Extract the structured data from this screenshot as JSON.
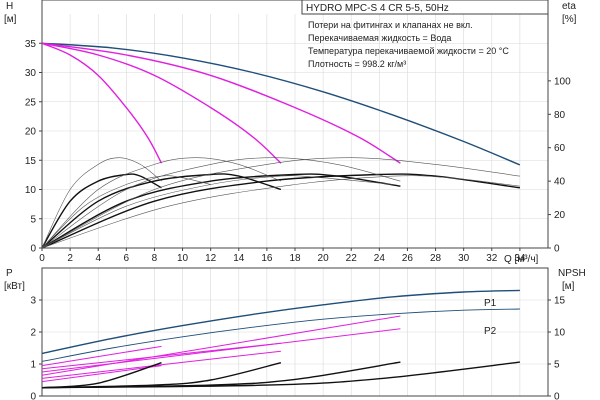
{
  "chart_data": [
    {
      "type": "line",
      "title": "HYDRO MPC-S 4 CR 5-5, 50Hz",
      "annotations": [
        "Потери на фитингах и клапанах не вкл.",
        "Перекачиваемая жидкость = Вода",
        "Температура перекачиваемой жидкости = 20 °C",
        "Плотность = 998.2 кг/м³"
      ],
      "ylabel_left": "H",
      "ylabel_left_unit": "[м]",
      "ylabel_right": "eta",
      "ylabel_right_unit": "[%]",
      "xlabel": "Q [м³/ч]",
      "xlim": [
        0,
        36
      ],
      "ylim_left": [
        0,
        40
      ],
      "ylim_right": [
        0,
        140
      ],
      "x_ticks": [
        0,
        2,
        4,
        6,
        8,
        10,
        12,
        14,
        16,
        18,
        20,
        22,
        24,
        26,
        28,
        30,
        32,
        34
      ],
      "y_ticks_left": [
        0,
        5,
        10,
        15,
        20,
        25,
        30,
        35
      ],
      "y_ticks_right": [
        0,
        20,
        40,
        60,
        80,
        100
      ],
      "colors": {
        "max": "#1f4e79",
        "reduced": "#e020e0",
        "eta": "#111111",
        "eta_thin": "#555555"
      },
      "series": [
        {
          "kind": "head_max",
          "x": [
            0,
            5,
            10,
            15,
            20,
            25,
            30,
            34
          ],
          "y": [
            35,
            34.2,
            32.5,
            30,
            26.7,
            22.7,
            18.2,
            14.2
          ]
        },
        {
          "kind": "head_reduced",
          "x": [
            0,
            2,
            4,
            6,
            7.5,
            8.5
          ],
          "y": [
            35,
            33,
            29.5,
            24,
            19,
            14.5
          ]
        },
        {
          "kind": "head_reduced",
          "x": [
            0,
            4,
            8,
            12,
            15,
            17
          ],
          "y": [
            35,
            33,
            29.5,
            24,
            19,
            14.5
          ]
        },
        {
          "kind": "head_reduced",
          "x": [
            0,
            6,
            12,
            18,
            22.5,
            25.5
          ],
          "y": [
            35,
            33,
            29.5,
            24,
            19,
            14.5
          ]
        },
        {
          "kind": "eta",
          "x": [
            0,
            2,
            4,
            6,
            7,
            8.5
          ],
          "y": [
            0,
            28,
            40,
            44,
            43,
            36
          ]
        },
        {
          "kind": "eta",
          "x": [
            0,
            4,
            8,
            12,
            14,
            17
          ],
          "y": [
            0,
            28,
            40,
            44,
            43,
            35
          ]
        },
        {
          "kind": "eta",
          "x": [
            0,
            6,
            12,
            18,
            21,
            25.5
          ],
          "y": [
            0,
            28,
            40,
            44,
            43,
            37
          ]
        },
        {
          "kind": "eta",
          "x": [
            0,
            8,
            16,
            24,
            28,
            34
          ],
          "y": [
            0,
            28,
            40,
            44,
            43,
            36
          ]
        },
        {
          "kind": "eta_thin",
          "x": [
            0,
            2,
            4,
            5.5,
            7,
            8.5
          ],
          "y": [
            0,
            35,
            50,
            54,
            50,
            40
          ]
        },
        {
          "kind": "eta_thin",
          "x": [
            0,
            4,
            8,
            11,
            14,
            17
          ],
          "y": [
            0,
            35,
            50,
            54,
            50,
            40
          ]
        },
        {
          "kind": "eta_thin",
          "x": [
            0,
            6,
            12,
            16.5,
            21,
            25.5
          ],
          "y": [
            0,
            35,
            50,
            54,
            50,
            40
          ]
        },
        {
          "kind": "eta_thin",
          "x": [
            0,
            8,
            16,
            22,
            28,
            34
          ],
          "y": [
            0,
            35,
            50,
            54,
            50,
            43
          ]
        },
        {
          "kind": "eta_thin",
          "x": [
            0,
            3,
            6,
            8.5,
            10,
            12
          ],
          "y": [
            0,
            25,
            38,
            43,
            42,
            38
          ]
        },
        {
          "kind": "eta_thin",
          "x": [
            0,
            6,
            12,
            17,
            20,
            25
          ],
          "y": [
            0,
            25,
            38,
            43,
            42,
            38
          ]
        },
        {
          "kind": "eta_thin",
          "x": [
            0,
            9,
            18,
            25,
            29,
            34
          ],
          "y": [
            0,
            25,
            38,
            43,
            42,
            37
          ]
        }
      ]
    },
    {
      "type": "line",
      "ylabel_left": "P",
      "ylabel_left_unit": "[кВт]",
      "ylabel_right": "NPSH",
      "ylabel_right_unit": "[м]",
      "xlim": [
        0,
        36
      ],
      "ylim_left": [
        0,
        4
      ],
      "ylim_right": [
        0,
        20
      ],
      "y_ticks_left": [
        0,
        1,
        2,
        3
      ],
      "y_ticks_right": [
        0,
        5,
        10,
        15
      ],
      "series_labels": [
        "P1",
        "P2"
      ],
      "colors": {
        "p1": "#1f4e79",
        "p2": "#1f4e79",
        "reduced": "#e020e0",
        "npsh": "#111111"
      },
      "series": [
        {
          "name": "P1",
          "kind": "p1",
          "x": [
            0,
            5,
            10,
            15,
            20,
            25,
            30,
            34
          ],
          "y": [
            1.33,
            1.8,
            2.2,
            2.55,
            2.85,
            3.1,
            3.25,
            3.3
          ]
        },
        {
          "name": "P2",
          "kind": "p2",
          "x": [
            0,
            5,
            10,
            15,
            20,
            25,
            30,
            34
          ],
          "y": [
            1.08,
            1.5,
            1.85,
            2.15,
            2.4,
            2.57,
            2.68,
            2.72
          ]
        },
        {
          "kind": "reduced",
          "x": [
            0,
            8.5
          ],
          "y": [
            0.95,
            1.55
          ]
        },
        {
          "kind": "reduced",
          "x": [
            0,
            17
          ],
          "y": [
            0.85,
            1.65
          ]
        },
        {
          "kind": "reduced",
          "x": [
            0,
            25.5
          ],
          "y": [
            0.75,
            2.1
          ]
        },
        {
          "kind": "reduced",
          "x": [
            0,
            25.5
          ],
          "y": [
            0.65,
            2.5
          ]
        },
        {
          "kind": "reduced",
          "x": [
            0,
            17
          ],
          "y": [
            0.55,
            1.4
          ]
        },
        {
          "kind": "reduced",
          "x": [
            0,
            8.5
          ],
          "y": [
            0.45,
            0.95
          ]
        },
        {
          "kind": "npsh",
          "x": [
            0,
            4,
            8.5
          ],
          "y": [
            1.3,
            2,
            5.2
          ]
        },
        {
          "kind": "npsh",
          "x": [
            0,
            8,
            12,
            17
          ],
          "y": [
            1.3,
            1.7,
            2.5,
            5.2
          ]
        },
        {
          "kind": "npsh",
          "x": [
            0,
            12,
            18,
            25.5
          ],
          "y": [
            1.3,
            1.7,
            2.6,
            5.3
          ]
        },
        {
          "kind": "npsh",
          "x": [
            0,
            16,
            24,
            34
          ],
          "y": [
            1.3,
            1.7,
            2.7,
            5.3
          ]
        }
      ]
    }
  ]
}
